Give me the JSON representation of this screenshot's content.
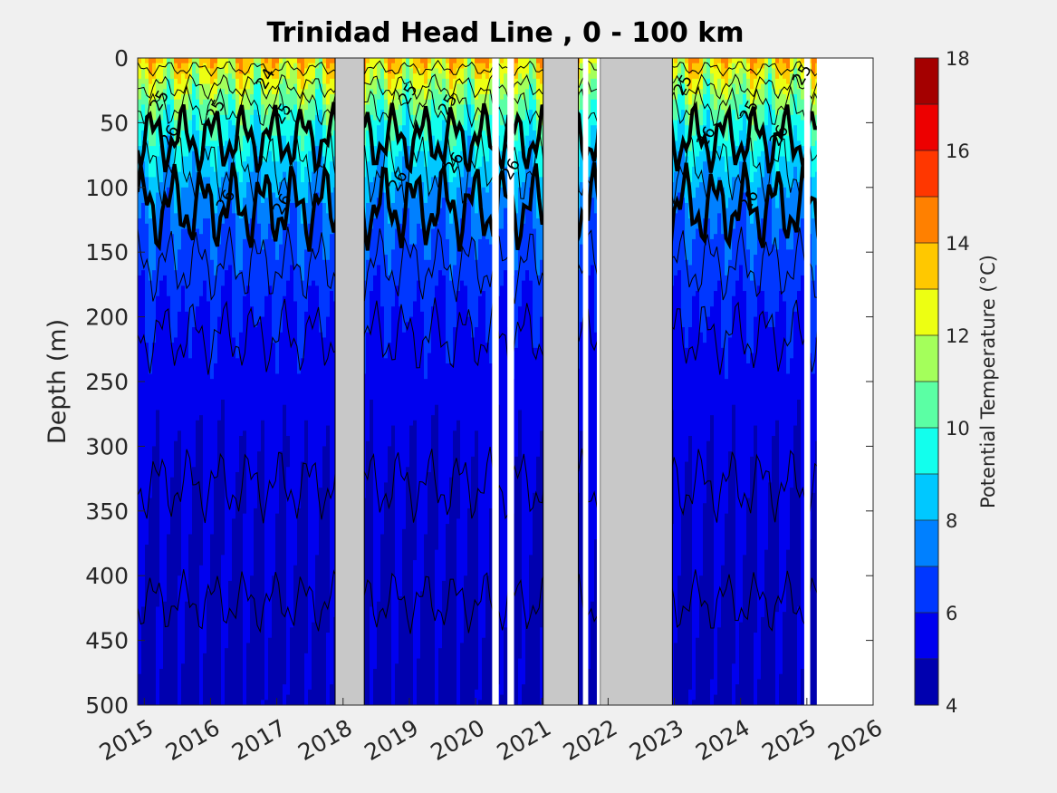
{
  "chart_data": {
    "type": "heatmap",
    "title": "Trinidad Head Line , 0 - 100 km",
    "xlabel": "",
    "ylabel": "Depth (m)",
    "x_ticks": [
      "2015",
      "2016",
      "2017",
      "2018",
      "2019",
      "2020",
      "2021",
      "2022",
      "2023",
      "2024",
      "2025",
      "2026"
    ],
    "xlim": [
      2014.9,
      2026.0
    ],
    "y_ticks": [
      0,
      50,
      100,
      150,
      200,
      250,
      300,
      350,
      400,
      450,
      500
    ],
    "ylim": [
      0,
      500
    ],
    "y_reversed": true,
    "colorbar": {
      "label": "Potential Temperature (°C)",
      "range": [
        4,
        18
      ],
      "step": 1,
      "ticks": [
        4,
        6,
        8,
        10,
        12,
        14,
        16,
        18
      ],
      "colormap": "jet"
    },
    "data_gaps": [
      {
        "start": 2017.88,
        "end": 2018.32
      },
      {
        "start": 2020.25,
        "end": 2020.35
      },
      {
        "start": 2020.48,
        "end": 2020.58
      },
      {
        "start": 2021.02,
        "end": 2021.55
      },
      {
        "start": 2021.62,
        "end": 2021.7
      },
      {
        "start": 2021.83,
        "end": 2021.88
      },
      {
        "start": 2021.88,
        "end": 2022.97
      },
      {
        "start": 2024.96,
        "end": 2025.05
      },
      {
        "start": 2025.15,
        "end": 2026.0
      }
    ],
    "grey_gaps": [
      {
        "start": 2017.88,
        "end": 2018.32
      },
      {
        "start": 2021.02,
        "end": 2021.55
      },
      {
        "start": 2021.88,
        "end": 2022.97
      }
    ],
    "white_gaps": [
      {
        "start": 2020.25,
        "end": 2020.35
      },
      {
        "start": 2020.48,
        "end": 2020.58
      },
      {
        "start": 2021.62,
        "end": 2021.7
      },
      {
        "start": 2021.83,
        "end": 2021.88
      },
      {
        "start": 2024.96,
        "end": 2025.05
      },
      {
        "start": 2025.15,
        "end": 2026.0
      }
    ],
    "contour_labels": [
      {
        "text": "25",
        "x": 2015.3,
        "y": 35
      },
      {
        "text": "26",
        "x": 2015.45,
        "y": 62
      },
      {
        "text": "25",
        "x": 2016.15,
        "y": 42
      },
      {
        "text": "26",
        "x": 2016.3,
        "y": 112
      },
      {
        "text": "24",
        "x": 2016.9,
        "y": 18
      },
      {
        "text": "25",
        "x": 2017.15,
        "y": 45
      },
      {
        "text": "26",
        "x": 2017.15,
        "y": 115
      },
      {
        "text": "26",
        "x": 2018.9,
        "y": 97
      },
      {
        "text": "25",
        "x": 2019.05,
        "y": 30
      },
      {
        "text": "25",
        "x": 2019.65,
        "y": 38
      },
      {
        "text": "26",
        "x": 2019.75,
        "y": 83
      },
      {
        "text": "26",
        "x": 2020.6,
        "y": 88
      },
      {
        "text": "25",
        "x": 2023.2,
        "y": 23
      },
      {
        "text": "26",
        "x": 2023.55,
        "y": 63
      },
      {
        "text": "25",
        "x": 2024.2,
        "y": 43
      },
      {
        "text": "26",
        "x": 2024.2,
        "y": 112
      },
      {
        "text": "26",
        "x": 2024.65,
        "y": 62
      },
      {
        "text": "25",
        "x": 2025.0,
        "y": 15
      }
    ]
  }
}
